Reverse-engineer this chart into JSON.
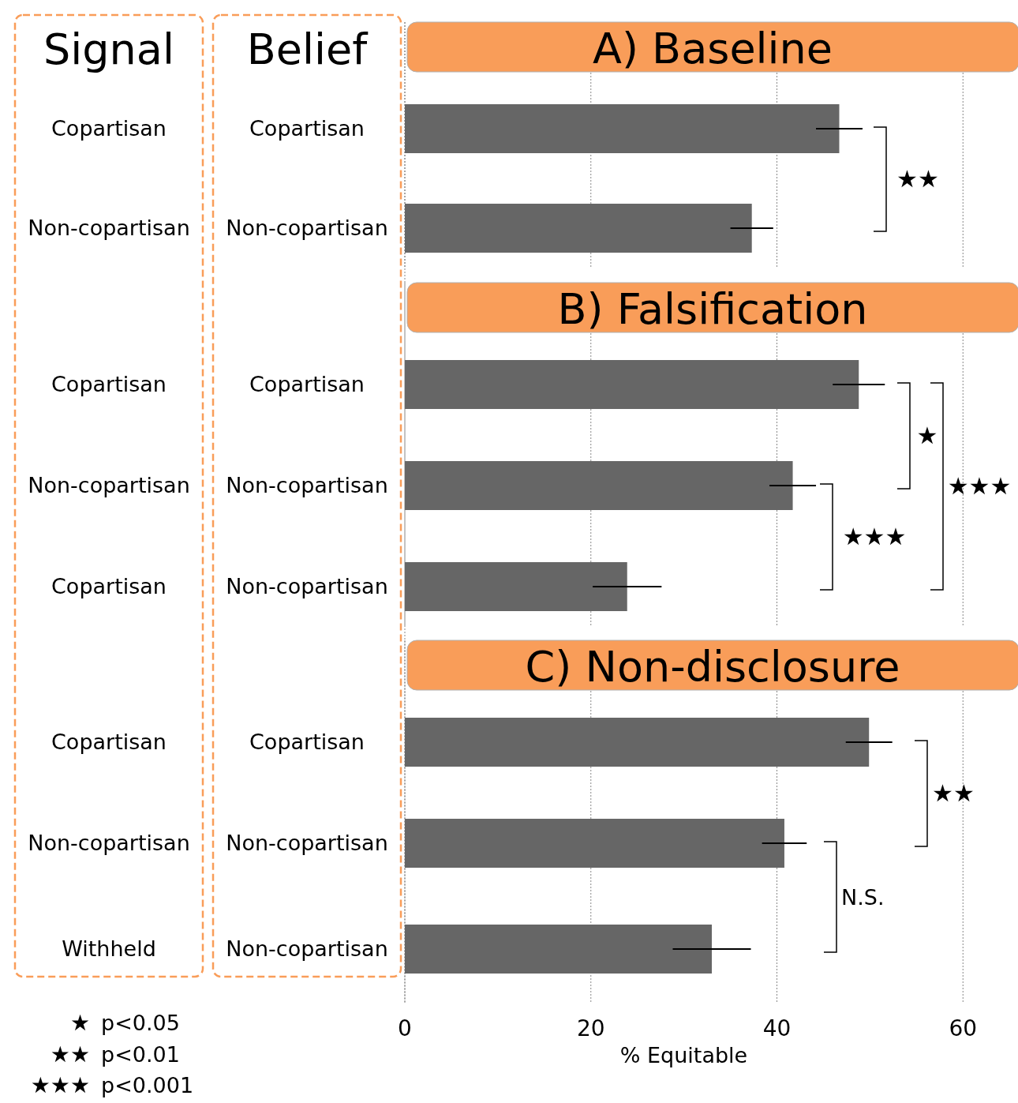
{
  "chart_data": [
    {
      "type": "bar",
      "orientation": "horizontal",
      "title": "A) Baseline",
      "ylabel": "Belief",
      "categories": [
        "Copartisan",
        "Non-copartisan"
      ],
      "values": [
        46.7,
        37.3
      ],
      "errors": [
        2.5,
        2.3
      ],
      "color": "#666666",
      "xlim": [
        0,
        66
      ],
      "xticks": [
        0,
        20,
        40,
        60
      ],
      "grid": "x",
      "tick_labels": "y",
      "annotations": [
        "Signal",
        "Copartisan",
        "Non-copartisan",
        "★★"
      ]
    },
    {
      "type": "bar",
      "orientation": "horizontal",
      "title": "B) Falsification",
      "categories": [
        "Copartisan",
        "Non-copartisan",
        "Non-copartisan"
      ],
      "values": [
        48.8,
        41.7,
        23.9
      ],
      "errors": [
        2.8,
        2.5,
        3.7
      ],
      "color": "#666666",
      "xlim": [
        0,
        66
      ],
      "xticks": [
        0,
        20,
        40,
        60
      ],
      "grid": "x",
      "tick_labels": "y",
      "annotations": [
        "Copartisan",
        "Non-copartisan",
        "Copartisan",
        "★",
        "★★★",
        "★★★"
      ]
    },
    {
      "type": "bar",
      "orientation": "horizontal",
      "title": "C) Non-disclosure",
      "xlabel": "% Equitable",
      "categories": [
        "Copartisan",
        "Non-copartisan",
        "Non-copartisan"
      ],
      "values": [
        49.9,
        40.8,
        33.0
      ],
      "errors": [
        2.5,
        2.4,
        4.2
      ],
      "color": "#666666",
      "xlim": [
        0,
        66
      ],
      "xticks": [
        0,
        20,
        40,
        60
      ],
      "grid": "x",
      "annotations": [
        "Copartisan",
        "Non-copartisan",
        "Withheld",
        "★★",
        "N.S.",
        "★ p<0.05",
        "★★ p<0.01",
        "★★★ p<0.001"
      ]
    }
  ]
}
